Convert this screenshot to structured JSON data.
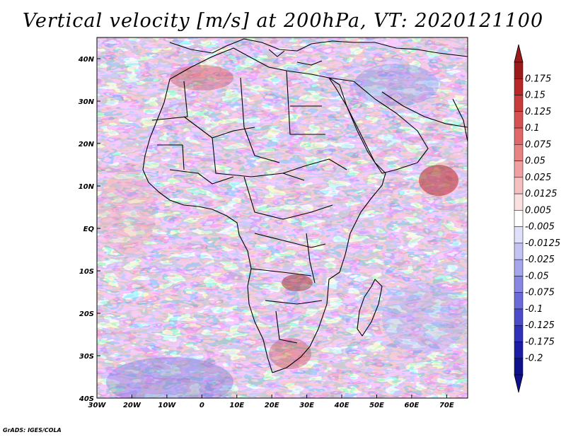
{
  "title": "Vertical velocity [m/s] at 200hPa, VT: 2020121100",
  "credit": "GrADS: IGES/COLA",
  "map": {
    "lon_range": [
      -30,
      76
    ],
    "lat_range": [
      -40,
      45
    ],
    "x_ticks": [
      "30W",
      "20W",
      "10W",
      "0",
      "10E",
      "20E",
      "30E",
      "40E",
      "50E",
      "60E",
      "70E"
    ],
    "x_tick_values": [
      -30,
      -20,
      -10,
      0,
      10,
      20,
      30,
      40,
      50,
      60,
      70
    ],
    "y_ticks": [
      "40N",
      "30N",
      "20N",
      "10N",
      "EQ",
      "10S",
      "20S",
      "30S",
      "40S"
    ],
    "y_tick_values": [
      40,
      30,
      20,
      10,
      0,
      -10,
      -20,
      -30,
      -40
    ]
  },
  "colorbar": {
    "labels": [
      "0.175",
      "0.15",
      "0.125",
      "0.1",
      "0.075",
      "0.05",
      "0.025",
      "0.0125",
      "0.005",
      "-0.005",
      "-0.0125",
      "-0.025",
      "-0.05",
      "-0.075",
      "-0.1",
      "-0.125",
      "-0.175",
      "-0.2"
    ],
    "colors": [
      "#9b1a1a",
      "#b82828",
      "#c83c3c",
      "#d65252",
      "#e06868",
      "#e98282",
      "#f0a0a0",
      "#f6c0c0",
      "#fbe0e0",
      "#ffffff",
      "#e0e0fa",
      "#c4c4f4",
      "#a6a6ec",
      "#8888e4",
      "#6a6ad8",
      "#4c4cca",
      "#3030b8",
      "#1c1ca4",
      "#10108a"
    ]
  }
}
